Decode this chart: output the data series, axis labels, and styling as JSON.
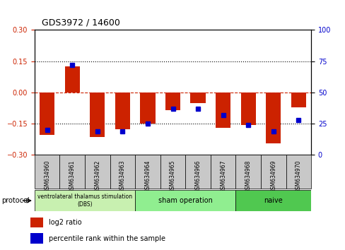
{
  "title": "GDS3972 / 14600",
  "samples": [
    "GSM634960",
    "GSM634961",
    "GSM634962",
    "GSM634963",
    "GSM634964",
    "GSM634965",
    "GSM634966",
    "GSM634967",
    "GSM634968",
    "GSM634969",
    "GSM634970"
  ],
  "log2_ratio": [
    -0.205,
    0.125,
    -0.215,
    -0.175,
    -0.15,
    -0.085,
    -0.05,
    -0.17,
    -0.155,
    -0.245,
    -0.07
  ],
  "percentile_rank": [
    20,
    72,
    19,
    19,
    25,
    37,
    37,
    32,
    24,
    19,
    28
  ],
  "groups": [
    {
      "label": "ventrolateral thalamus stimulation\n(DBS)",
      "start": 0,
      "end": 4,
      "color": "#c8f0b0"
    },
    {
      "label": "sham operation",
      "start": 4,
      "end": 8,
      "color": "#90ee90"
    },
    {
      "label": "naive",
      "start": 8,
      "end": 11,
      "color": "#50c850"
    }
  ],
  "ylim_left": [
    -0.3,
    0.3
  ],
  "ylim_right": [
    0,
    100
  ],
  "yticks_left": [
    -0.3,
    -0.15,
    0,
    0.15,
    0.3
  ],
  "yticks_right": [
    0,
    25,
    50,
    75,
    100
  ],
  "bar_color": "#cc2200",
  "dot_color": "#0000cc",
  "hline_color": "#cc2200",
  "grid_color": "#000000",
  "bg_plot": "#ffffff",
  "tick_label_color_left": "#cc2200",
  "tick_label_color_right": "#0000cc",
  "legend_log2": "log2 ratio",
  "legend_pct": "percentile rank within the sample",
  "protocol_label": "protocol",
  "sample_box_color": "#c8c8c8"
}
